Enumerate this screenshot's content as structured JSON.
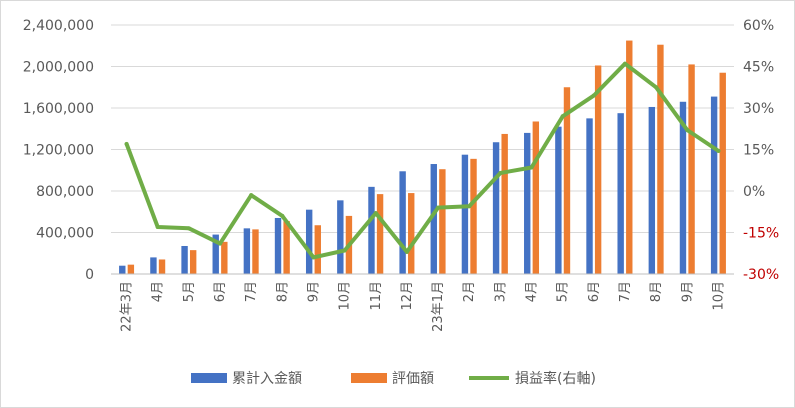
{
  "chart_data": {
    "type": "bar",
    "categories": [
      "22年3月",
      "4月",
      "5月",
      "6月",
      "7月",
      "8月",
      "9月",
      "10月",
      "11月",
      "12月",
      "23年1月",
      "2月",
      "3月",
      "4月",
      "5月",
      "6月",
      "7月",
      "8月",
      "9月",
      "10月"
    ],
    "series": [
      {
        "name": "累計入金額",
        "type": "bar",
        "axis": "left",
        "color": "#4472C4",
        "values": [
          80000,
          160000,
          270000,
          380000,
          440000,
          540000,
          620000,
          710000,
          840000,
          990000,
          1060000,
          1150000,
          1270000,
          1360000,
          1420000,
          1500000,
          1550000,
          1610000,
          1660000,
          1710000
        ]
      },
      {
        "name": "評価額",
        "type": "bar",
        "axis": "left",
        "color": "#ED7D31",
        "values": [
          90000,
          140000,
          230000,
          310000,
          430000,
          510000,
          470000,
          560000,
          770000,
          780000,
          1010000,
          1110000,
          1350000,
          1470000,
          1800000,
          2010000,
          2250000,
          2210000,
          2020000,
          1940000
        ]
      },
      {
        "name": "損益率(右軸)",
        "type": "line",
        "axis": "right",
        "color": "#70AD47",
        "values": [
          17,
          -13,
          -13.5,
          -19,
          -1.5,
          -9,
          -24,
          -21.5,
          -8,
          -22,
          -6,
          -5.5,
          6.5,
          8.5,
          27,
          34.5,
          46,
          37.5,
          22,
          14.5
        ]
      }
    ],
    "y_left": {
      "range": [
        0,
        2400000
      ],
      "ticks": [
        0,
        400000,
        800000,
        1200000,
        1600000,
        2000000,
        2400000
      ],
      "tick_labels": [
        "0",
        "400,000",
        "800,000",
        "1,200,000",
        "1,600,000",
        "2,000,000",
        "2,400,000"
      ]
    },
    "y_right": {
      "range": [
        -30,
        60
      ],
      "ticks": [
        -30,
        -15,
        0,
        15,
        30,
        45,
        60
      ],
      "tick_labels": [
        "-30%",
        "-15%",
        "0%",
        "15%",
        "30%",
        "45%",
        "60%"
      ],
      "positive_color": "#595959",
      "negative_color": "#C00000"
    },
    "grid": true,
    "legend_position": "bottom"
  }
}
